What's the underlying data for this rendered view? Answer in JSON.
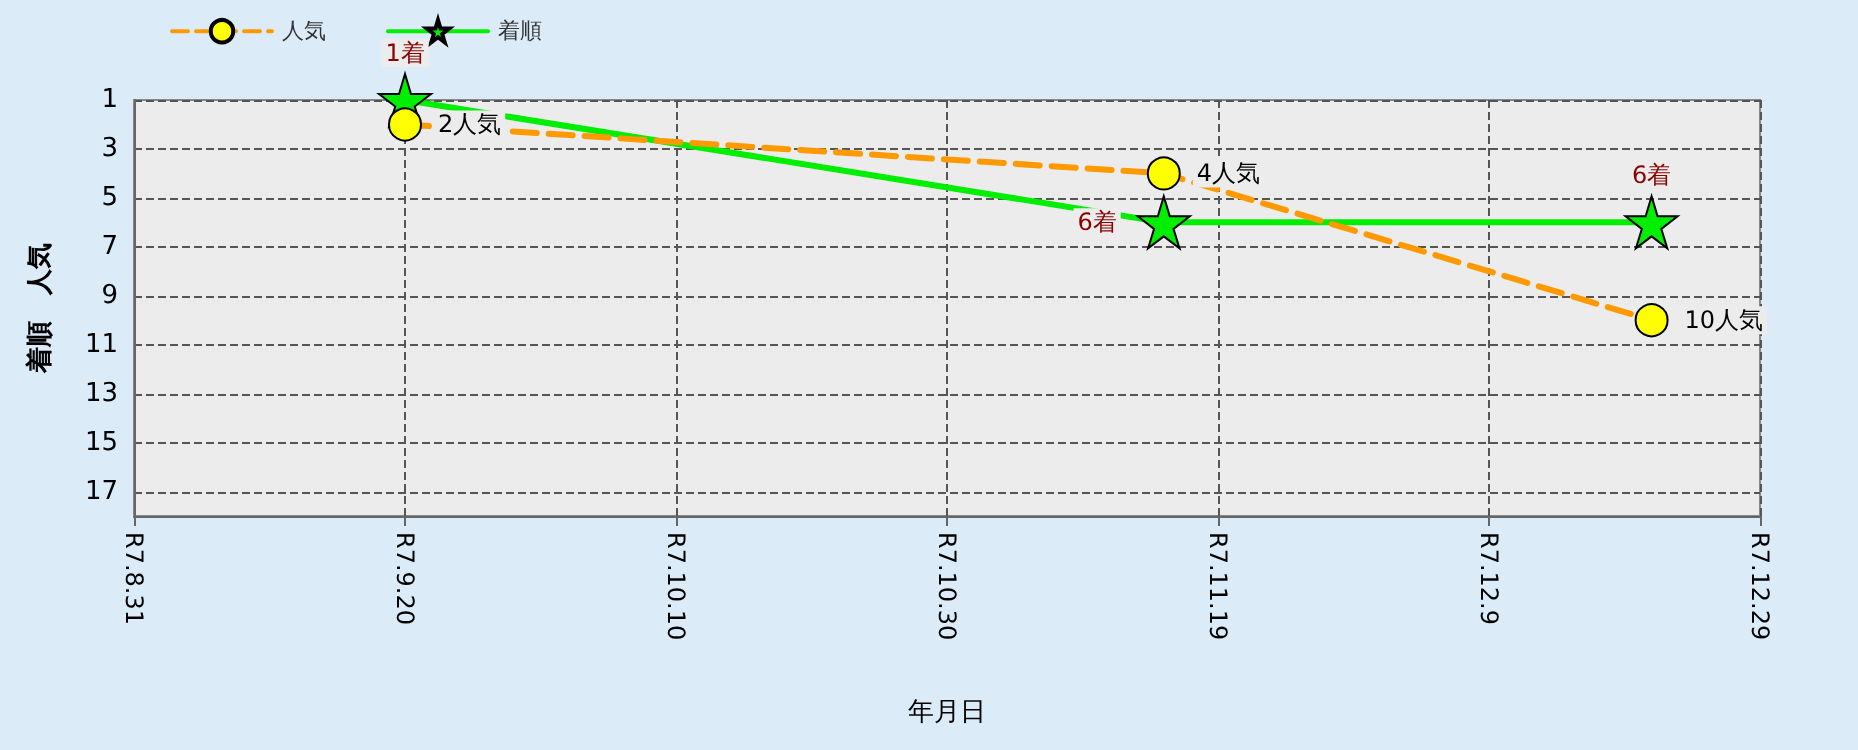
{
  "chart_data": {
    "type": "line",
    "xlabel": "年月日",
    "ylabel": "着順　人気",
    "x": [
      "--09-20",
      "--11-15",
      "--12-21"
    ],
    "series": [
      {
        "name": "人気",
        "color": "#ff9900",
        "values": [
          2,
          4,
          10
        ],
        "marker": "circle",
        "line_style": "dashed",
        "value_labels": [
          "2人気",
          "4人気",
          "10人気"
        ]
      },
      {
        "name": "着順",
        "color": "#00ee00",
        "values": [
          1,
          6,
          6
        ],
        "marker": "star",
        "line_style": "solid",
        "value_labels": [
          "1着",
          "6着",
          "6着"
        ]
      }
    ],
    "xlim": [
      "--08-31",
      "--12-29"
    ],
    "xticks": [
      {
        "value": "--08-31",
        "label": "R7.8.31"
      },
      {
        "value": "--09-20",
        "label": "R7.9.20"
      },
      {
        "value": "--10-10",
        "label": "R7.10.10"
      },
      {
        "value": "--10-30",
        "label": "R7.10.30"
      },
      {
        "value": "--11-19",
        "label": "R7.11.19"
      },
      {
        "value": "--12-09",
        "label": "R7.12.9"
      },
      {
        "value": "--12-29",
        "label": "R7.12.29"
      }
    ],
    "ylim": [
      18,
      1
    ],
    "yticks": [
      1,
      3,
      5,
      7,
      9,
      11,
      13,
      15,
      17
    ],
    "grid": true,
    "legend": "top left"
  }
}
